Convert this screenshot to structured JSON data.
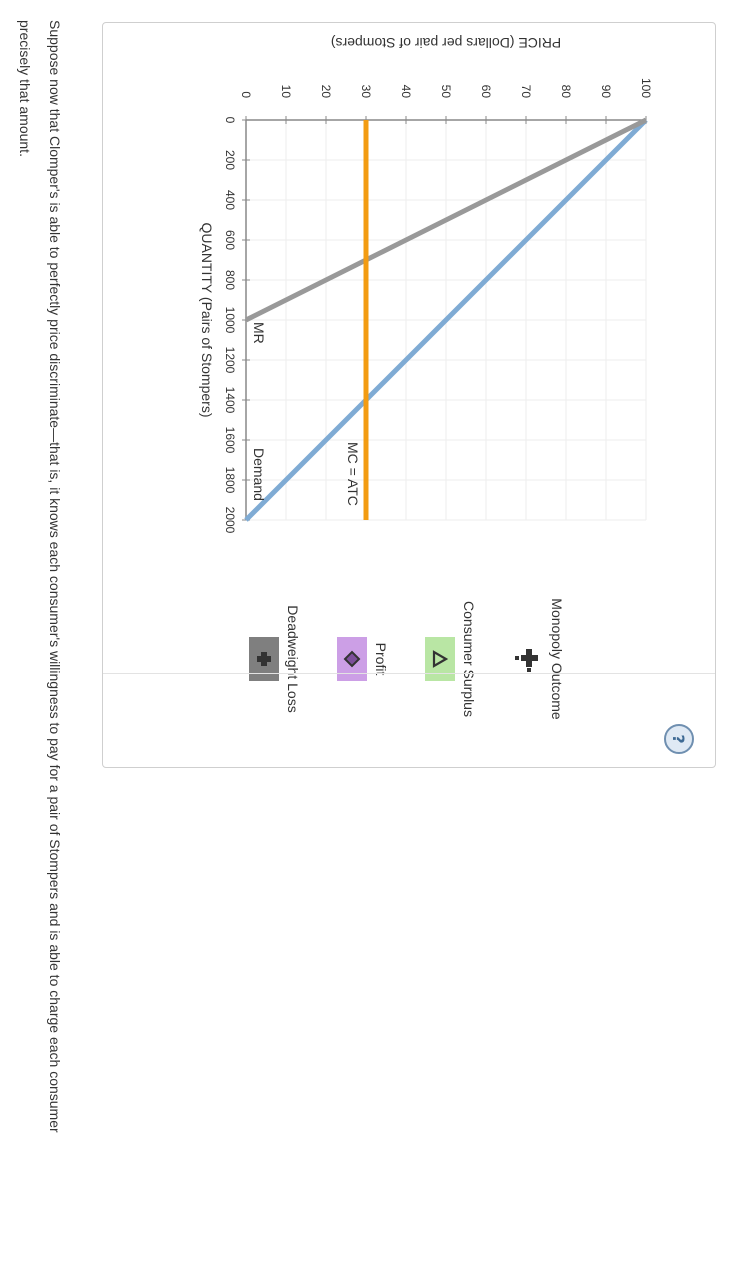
{
  "chart_data": {
    "type": "line",
    "xlabel": "QUANTITY (Pairs of Stompers)",
    "ylabel": "PRICE (Dollars per pair of Stompers)",
    "xlim": [
      0,
      2000
    ],
    "ylim": [
      0,
      100
    ],
    "x_ticks": [
      0,
      200,
      400,
      600,
      800,
      1000,
      1200,
      1400,
      1600,
      1800,
      2000
    ],
    "y_ticks": [
      0,
      10,
      20,
      30,
      40,
      50,
      60,
      70,
      80,
      90,
      100
    ],
    "grid": true,
    "series": [
      {
        "name": "Demand",
        "color": "#7fabd4",
        "points": [
          [
            0,
            100
          ],
          [
            2000,
            0
          ]
        ]
      },
      {
        "name": "MR",
        "color": "#999999",
        "points": [
          [
            0,
            100
          ],
          [
            1000,
            0
          ]
        ]
      },
      {
        "name": "MC = ATC",
        "color": "#f39c12",
        "points": [
          [
            0,
            30
          ],
          [
            2000,
            30
          ]
        ]
      }
    ]
  },
  "legend": {
    "items": [
      {
        "label": "Monopoly Outcome",
        "icon": "plus-cross-icon",
        "swatch_color": ""
      },
      {
        "label": "Consumer Surplus",
        "icon": "triangle-icon",
        "swatch_color": "#b9e6a4"
      },
      {
        "label": "Profit",
        "icon": "diamond-icon",
        "swatch_color": "#cc9fe6"
      },
      {
        "label": "Deadweight Loss",
        "icon": "plus-icon",
        "swatch_color": "#7f7f7f"
      }
    ]
  },
  "help_label": "?",
  "prompt_text": "Suppose now that Clomper's is able to perfectly price discriminate—that is, it knows each consumer's willingness to pay for a pair of Stompers and is able to charge each consumer precisely that amount."
}
